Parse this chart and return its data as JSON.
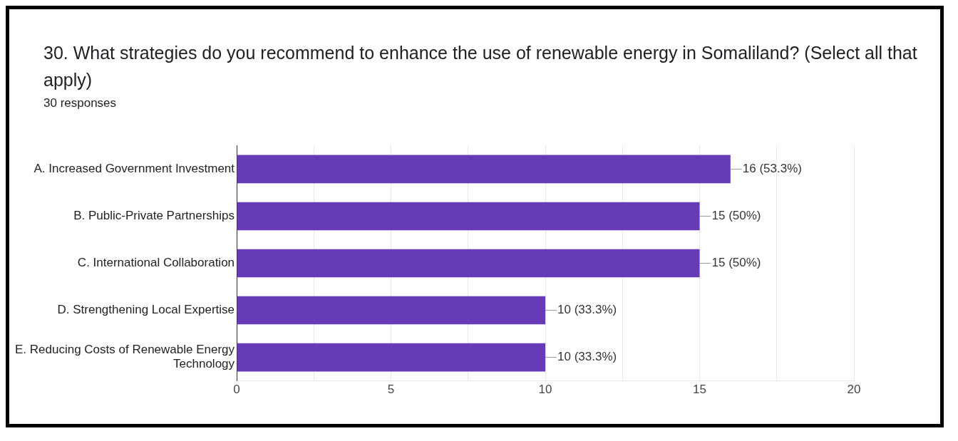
{
  "chart_data": {
    "type": "bar",
    "orientation": "horizontal",
    "title": "30. What strategies do you recommend to enhance the use of renewable energy in Somaliland? (Select all that apply)",
    "subtitle": "30 responses",
    "categories": [
      "A. Increased Government Investment",
      "B. Public-Private Partnerships",
      "C. International Collaboration",
      "D. Strengthening Local Expertise",
      "E. Reducing Costs of Renewable Energy Technology"
    ],
    "values": [
      16,
      15,
      15,
      10,
      10
    ],
    "value_labels": [
      "16 (53.3%)",
      "15 (50%)",
      "15 (50%)",
      "10 (33.3%)",
      "10 (33.3%)"
    ],
    "color": "#673ab7",
    "xlim": [
      0,
      20
    ],
    "xticks": [
      0,
      {
        "value": 2.5,
        "label": null
      },
      5,
      {
        "value": 7.5,
        "label": null
      },
      10,
      {
        "value": 12.5,
        "label": null
      },
      15,
      {
        "value": 17.5,
        "label": null
      },
      20
    ],
    "grid": "x",
    "legend": false
  }
}
